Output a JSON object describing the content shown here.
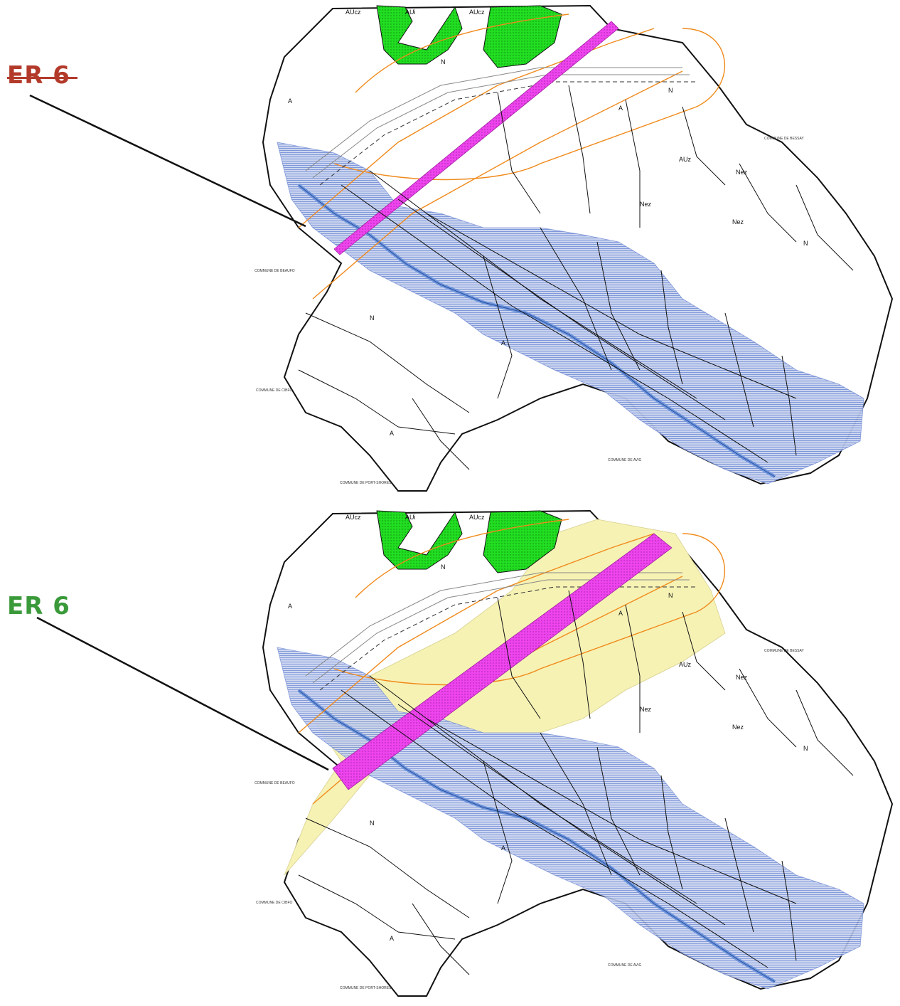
{
  "labels": {
    "old": {
      "text": "ER 6",
      "color": "#b33a2a",
      "struck": true
    },
    "new": {
      "text": "ER 6",
      "color": "#3a9a3a",
      "struck": false
    }
  },
  "map": {
    "commune_labels": {
      "nw": "COMMUNE DE BEAUFO",
      "w": "COMMUNE DE CIBFO",
      "e": "COMMUNE DE BESSAY",
      "s": "COMMUNE DE AVIG",
      "bottom": "COMMUNE DE PORT-SHORES"
    },
    "zones": [
      "AUcz",
      "AUi",
      "AUcz",
      "N",
      "N",
      "A",
      "Nez",
      "Nez",
      "Nez",
      "A",
      "A",
      "N",
      "A",
      "AUz",
      "N"
    ],
    "colors": {
      "flood_zone": "#b8c6ea",
      "flood_hatch": "#6f8bd6",
      "green_zone": "#22dd22",
      "er6_band": "#ee44ee",
      "orange_lines": "#f08a1c",
      "yellow_zone": "#f6f2b4",
      "river": "#6e95dc"
    }
  }
}
